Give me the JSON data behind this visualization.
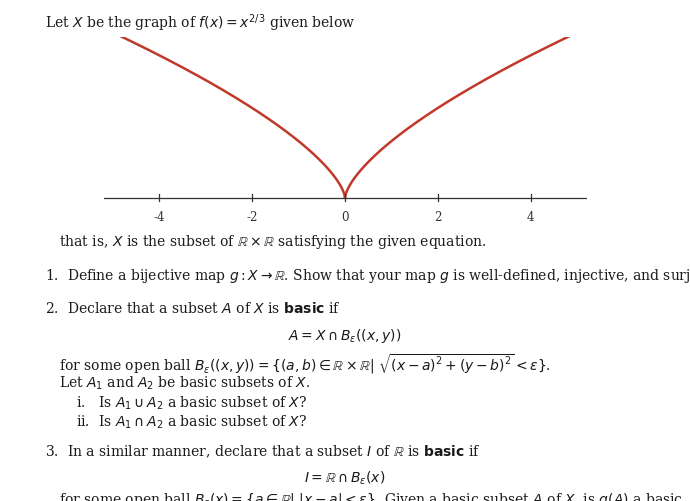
{
  "curve_color": "#c0392b",
  "curve_linewidth": 1.8,
  "axis_color": "#333333",
  "x_ticks": [
    -4,
    -2,
    0,
    2,
    4
  ],
  "x_lim": [
    -5.2,
    5.2
  ],
  "y_lim": [
    -0.35,
    2.85
  ],
  "background": "#ffffff",
  "text_color": "#1a1a1a",
  "font_size": 10.0
}
